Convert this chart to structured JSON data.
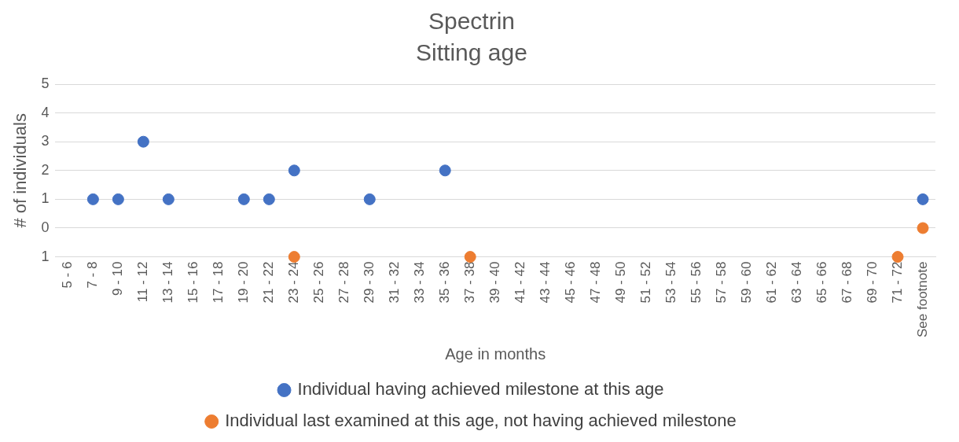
{
  "chart_data": {
    "type": "scatter",
    "title": "Spectrin",
    "subtitle": "Sitting age",
    "xlabel": "Age in months",
    "ylabel": "# of individuals",
    "categories": [
      "5 - 6",
      "7 - 8",
      "9 - 10",
      "11 - 12",
      "13 - 14",
      "15 - 16",
      "17 - 18",
      "19 - 20",
      "21 - 22",
      "23 - 24",
      "25 - 26",
      "27 - 28",
      "29 - 30",
      "31 - 32",
      "33 - 34",
      "35 - 36",
      "37 - 38",
      "39 - 40",
      "41 - 42",
      "43 - 44",
      "45 - 46",
      "47 - 48",
      "49 - 50",
      "51 - 52",
      "53 - 54",
      "55 - 56",
      "57 - 58",
      "59 - 60",
      "61 - 62",
      "63 - 64",
      "65 - 66",
      "67 - 68",
      "69 - 70",
      "71 - 72",
      "See footnote"
    ],
    "series": [
      {
        "name": "Individual having achieved milestone at this age",
        "color": "#4472c4",
        "values": [
          null,
          1,
          1,
          3,
          1,
          null,
          null,
          1,
          1,
          2,
          null,
          null,
          1,
          null,
          null,
          2,
          null,
          null,
          null,
          null,
          null,
          null,
          null,
          null,
          null,
          null,
          null,
          null,
          null,
          null,
          null,
          null,
          null,
          null,
          1
        ]
      },
      {
        "name": "Individual last examined at this age, not having achieved milestone",
        "color": "#ed7d31",
        "values": [
          null,
          null,
          null,
          null,
          null,
          null,
          null,
          null,
          null,
          -1,
          null,
          null,
          null,
          null,
          null,
          null,
          -1,
          null,
          null,
          null,
          null,
          null,
          null,
          null,
          null,
          null,
          null,
          null,
          null,
          null,
          null,
          null,
          null,
          -1,
          0
        ]
      }
    ],
    "ylim": [
      -1,
      5
    ],
    "yticks": [
      {
        "value": -1,
        "label": "1"
      },
      0,
      1,
      2,
      3,
      4,
      5
    ],
    "grid": "y",
    "legend": "bottom",
    "marker": "circle"
  }
}
